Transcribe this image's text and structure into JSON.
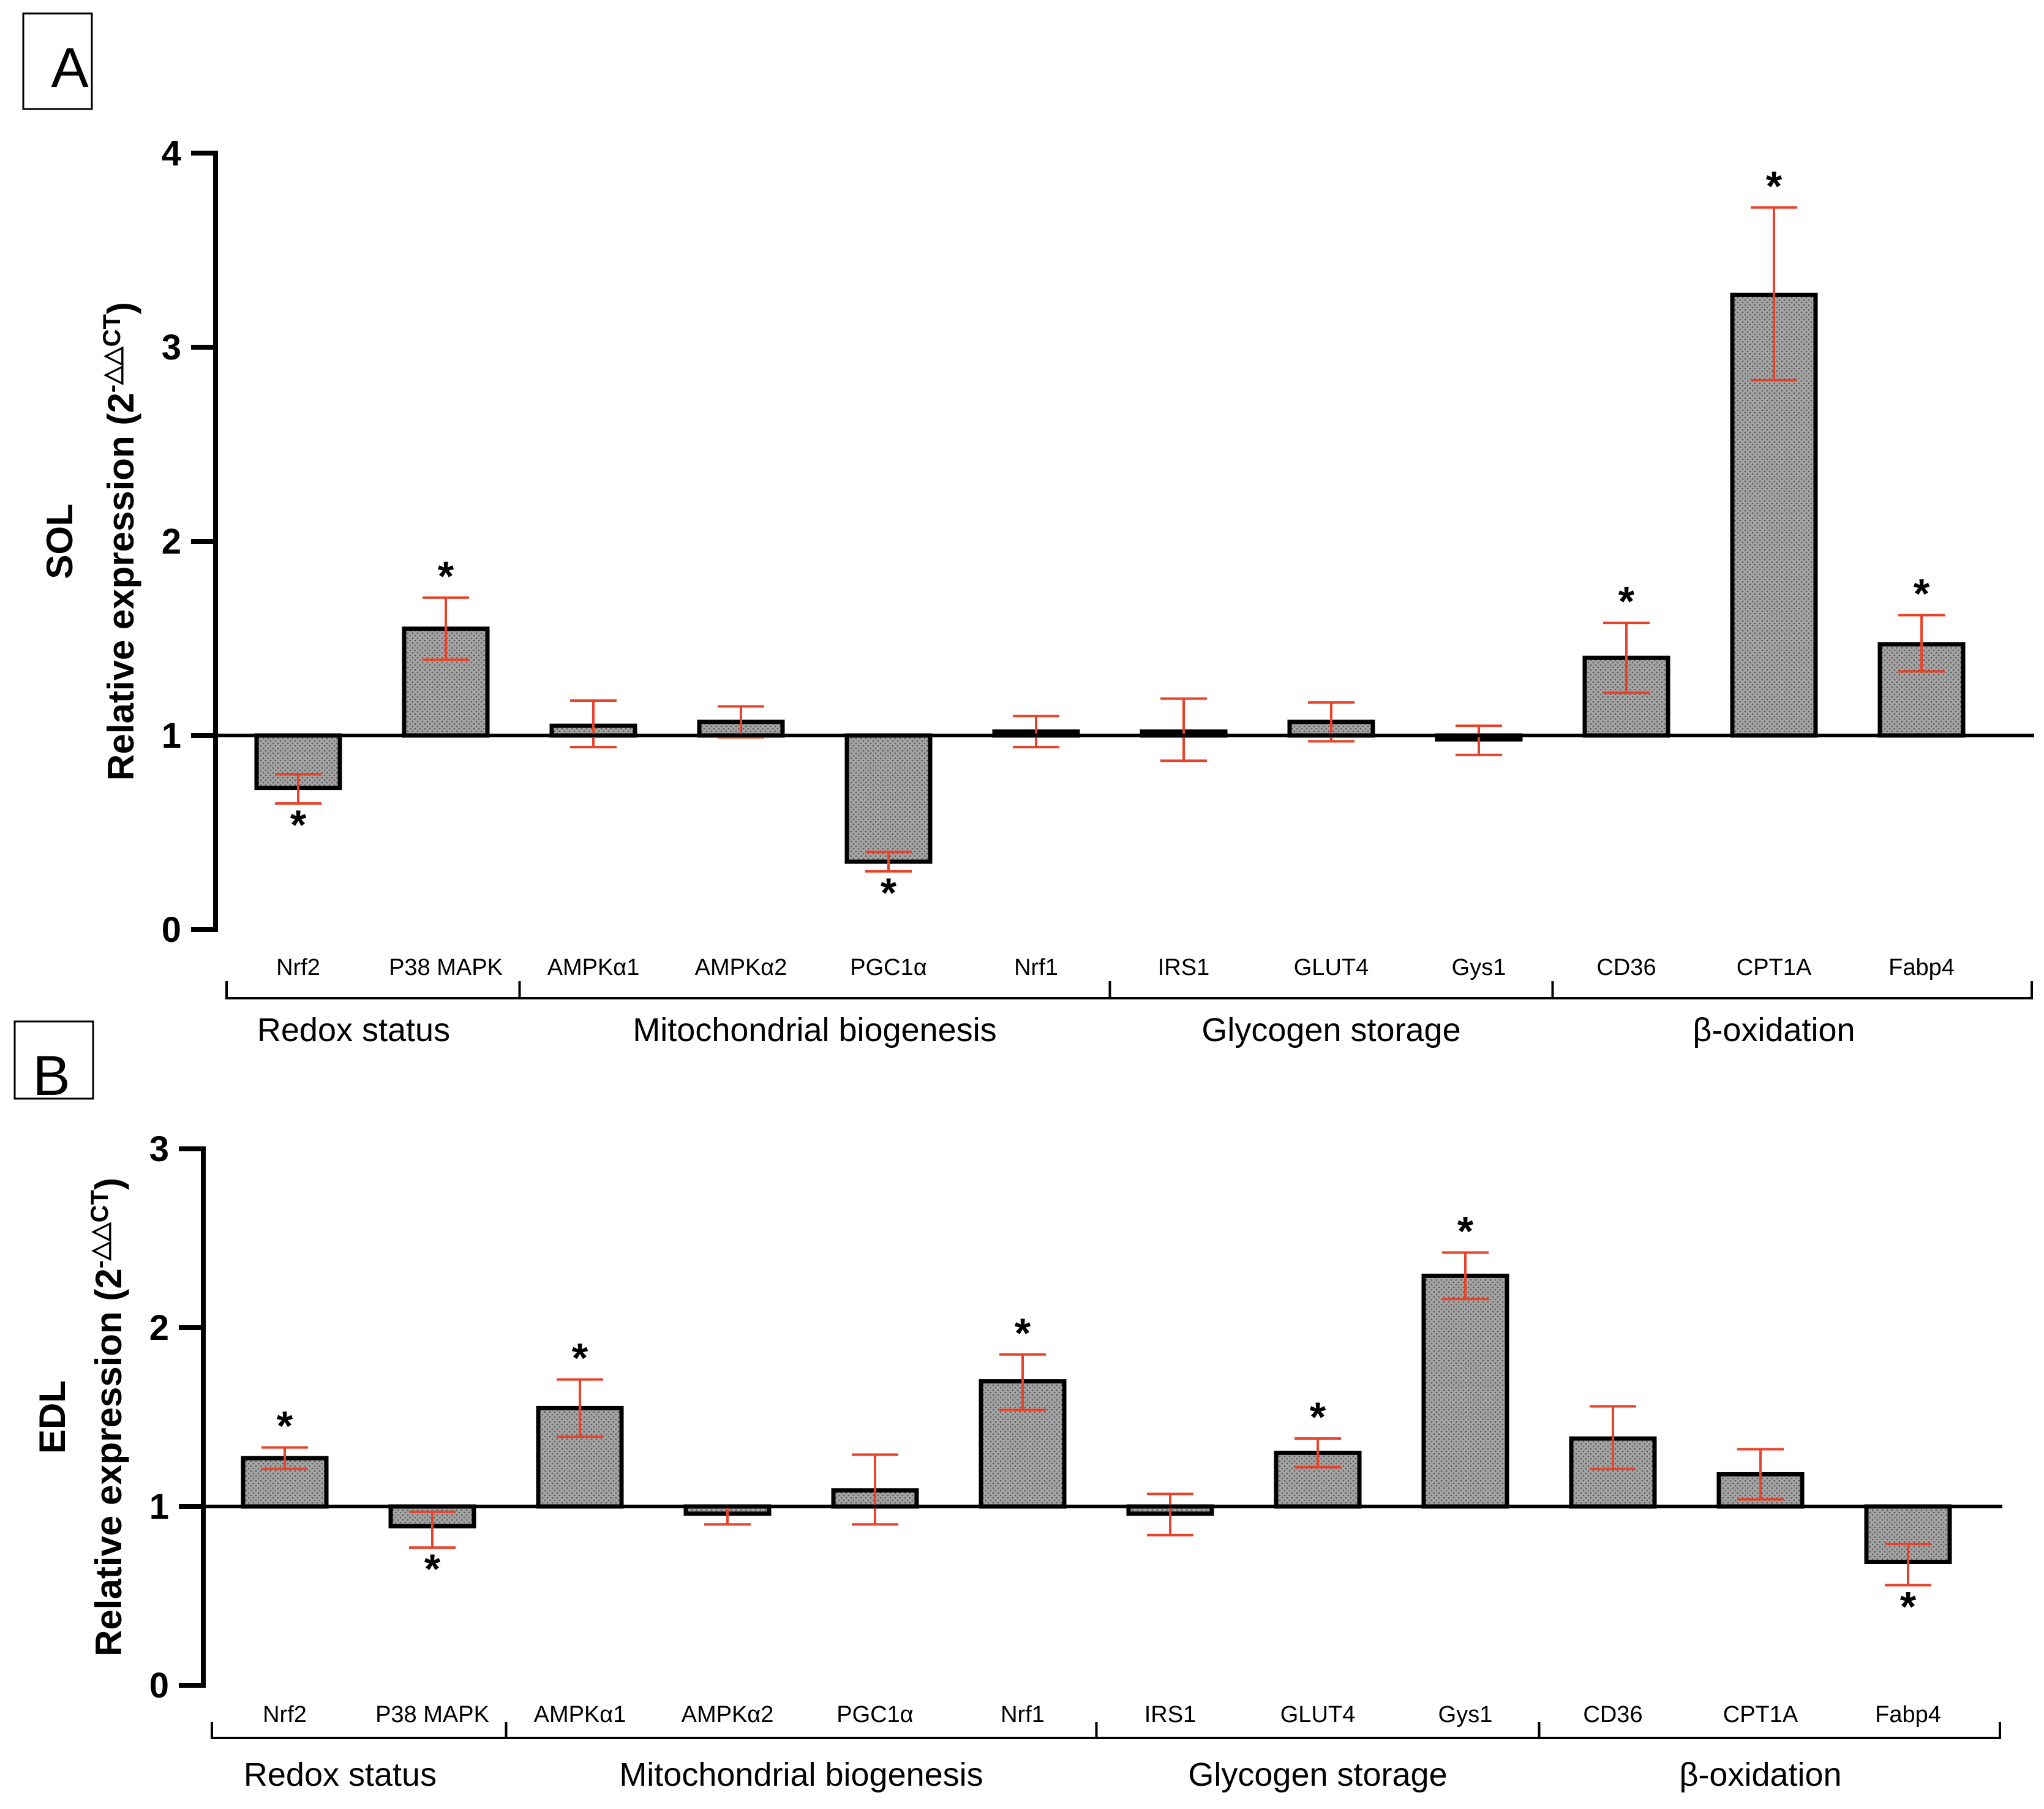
{
  "chart_data": [
    {
      "type": "bar",
      "panel_label": "A",
      "ylabel_line1": "SOL",
      "ylabel_line2_prefix": "Relative expression (2",
      "ylabel_superscript": "-△△CT",
      "ylabel_line2_suffix": ")",
      "ylim": [
        0,
        4
      ],
      "yticks": [
        "0",
        "1",
        "2",
        "3",
        "4"
      ],
      "baseline": 1,
      "categories": [
        "Nrf2",
        "P38 MAPK",
        "AMPKα1",
        "AMPKα2",
        "PGC1α",
        "Nrf1",
        "IRS1",
        "GLUT4",
        "Gys1",
        "CD36",
        "CPT1A",
        "Fabp4"
      ],
      "values": [
        0.73,
        1.55,
        1.05,
        1.07,
        0.35,
        1.02,
        1.02,
        1.07,
        0.98,
        1.4,
        3.27,
        1.47
      ],
      "error_upper": [
        0.8,
        1.71,
        1.18,
        1.15,
        0.4,
        1.1,
        1.19,
        1.17,
        1.05,
        1.58,
        3.72,
        1.62
      ],
      "error_lower": [
        0.65,
        1.39,
        0.94,
        0.99,
        0.3,
        0.94,
        0.87,
        0.97,
        0.9,
        1.22,
        2.83,
        1.33
      ],
      "significance_marker": "*",
      "significant": [
        true,
        true,
        false,
        false,
        true,
        false,
        false,
        false,
        false,
        true,
        true,
        true
      ],
      "groups": [
        {
          "label": "Redox status",
          "start": 0,
          "end": 1
        },
        {
          "label": "Mitochondrial biogenesis",
          "start": 2,
          "end": 5
        },
        {
          "label": "Glycogen storage",
          "start": 6,
          "end": 8
        },
        {
          "label": "β-oxidation",
          "start": 9,
          "end": 11
        }
      ]
    },
    {
      "type": "bar",
      "panel_label": "B",
      "ylabel_line1": "EDL",
      "ylabel_line2_prefix": "Relative expression (2",
      "ylabel_superscript": "-△△CT",
      "ylabel_line2_suffix": ")",
      "ylim": [
        0,
        3
      ],
      "yticks": [
        "0",
        "1",
        "2",
        "3"
      ],
      "baseline": 1,
      "categories": [
        "Nrf2",
        "P38 MAPK",
        "AMPKα1",
        "AMPKα2",
        "PGC1α",
        "Nrf1",
        "IRS1",
        "GLUT4",
        "Gys1",
        "CD36",
        "CPT1A",
        "Fabp4"
      ],
      "values": [
        1.27,
        0.89,
        1.55,
        0.96,
        1.09,
        1.7,
        0.96,
        1.3,
        2.29,
        1.38,
        1.18,
        0.69
      ],
      "error_upper": [
        1.33,
        0.97,
        1.71,
        1.0,
        1.29,
        1.85,
        1.07,
        1.38,
        2.42,
        1.56,
        1.32,
        0.79
      ],
      "error_lower": [
        1.21,
        0.77,
        1.39,
        0.9,
        0.9,
        1.54,
        0.84,
        1.22,
        2.16,
        1.21,
        1.04,
        0.56
      ],
      "significance_marker": "*",
      "significant": [
        true,
        true,
        true,
        false,
        false,
        true,
        false,
        true,
        true,
        false,
        false,
        true
      ],
      "groups": [
        {
          "label": "Redox status",
          "start": 0,
          "end": 1
        },
        {
          "label": "Mitochondrial biogenesis",
          "start": 2,
          "end": 5
        },
        {
          "label": "Glycogen storage",
          "start": 6,
          "end": 8
        },
        {
          "label": "β-oxidation",
          "start": 9,
          "end": 11
        }
      ]
    }
  ]
}
